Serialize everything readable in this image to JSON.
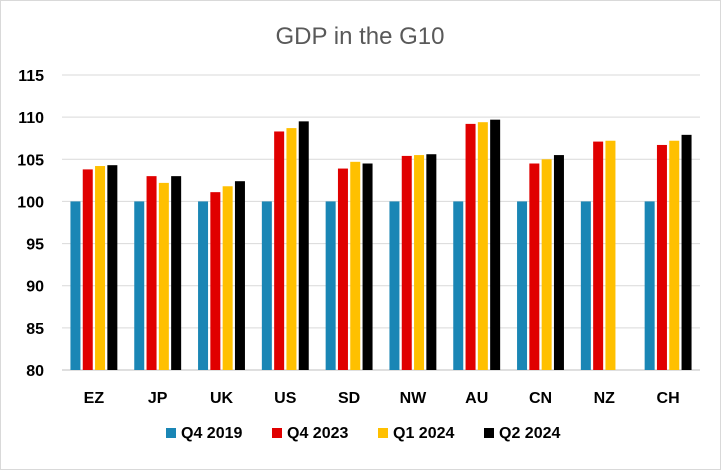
{
  "chart_data": {
    "type": "bar",
    "title": "GDP in the G10",
    "categories": [
      "EZ",
      "JP",
      "UK",
      "US",
      "SD",
      "NW",
      "AU",
      "CN",
      "NZ",
      "CH"
    ],
    "ylim": [
      80,
      115
    ],
    "yticks": [
      80,
      85,
      90,
      95,
      100,
      105,
      110,
      115
    ],
    "grid": true,
    "legend_position": "bottom",
    "series": [
      {
        "name": "Q4 2019",
        "color": "#1a86b5",
        "values": [
          100,
          100,
          100,
          100,
          100,
          100,
          100,
          100,
          100,
          100
        ]
      },
      {
        "name": "Q4 2023",
        "color": "#e00000",
        "values": [
          103.8,
          103.0,
          101.1,
          108.3,
          103.9,
          105.4,
          109.2,
          104.5,
          107.1,
          106.7
        ]
      },
      {
        "name": "Q1 2024",
        "color": "#ffc000",
        "values": [
          104.2,
          102.2,
          101.8,
          108.7,
          104.7,
          105.5,
          109.4,
          105.0,
          107.2,
          107.2
        ]
      },
      {
        "name": "Q2 2024",
        "color": "#000000",
        "values": [
          104.3,
          103.0,
          102.4,
          109.5,
          104.5,
          105.6,
          109.7,
          105.5,
          null,
          107.9
        ]
      }
    ]
  }
}
